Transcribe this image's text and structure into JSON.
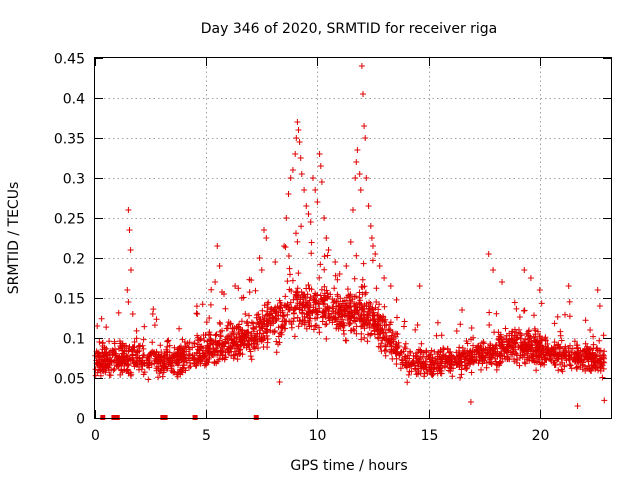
{
  "chart_data": {
    "type": "scatter",
    "title": "Day 346 of 2020, SRMTID for receiver riga",
    "xlabel": "GPS time / hours",
    "ylabel": "SRMTID / TECUs",
    "xlim": [
      0,
      23.2
    ],
    "ylim": [
      0,
      0.45
    ],
    "x_ticks": [
      0,
      5,
      10,
      15,
      20
    ],
    "x_tick_labels": [
      "0",
      "5",
      "10",
      "15",
      "20"
    ],
    "y_ticks": [
      0,
      0.05,
      0.1,
      0.15,
      0.2,
      0.25,
      0.3,
      0.35,
      0.4,
      0.45
    ],
    "y_tick_labels": [
      "0",
      "0.05",
      "0.1",
      "0.15",
      "0.2",
      "0.25",
      "0.3",
      "0.35",
      "0.4",
      "0.45"
    ],
    "grid": true,
    "marker": "+",
    "color": "#e00000",
    "zero_flags_hours": [
      0.35,
      0.85,
      1.0,
      3.05,
      3.15,
      4.5,
      7.25
    ],
    "series": [
      {
        "name": "SRMTID",
        "envelope": [
          {
            "x": 0.0,
            "median": 0.07,
            "spread": 0.03
          },
          {
            "x": 1.0,
            "median": 0.075,
            "spread": 0.035
          },
          {
            "x": 2.0,
            "median": 0.075,
            "spread": 0.035
          },
          {
            "x": 3.0,
            "median": 0.07,
            "spread": 0.035
          },
          {
            "x": 4.0,
            "median": 0.075,
            "spread": 0.035
          },
          {
            "x": 5.0,
            "median": 0.085,
            "spread": 0.035
          },
          {
            "x": 6.0,
            "median": 0.095,
            "spread": 0.04
          },
          {
            "x": 7.0,
            "median": 0.1,
            "spread": 0.04
          },
          {
            "x": 8.0,
            "median": 0.12,
            "spread": 0.05
          },
          {
            "x": 9.0,
            "median": 0.14,
            "spread": 0.06
          },
          {
            "x": 10.0,
            "median": 0.14,
            "spread": 0.055
          },
          {
            "x": 11.0,
            "median": 0.13,
            "spread": 0.05
          },
          {
            "x": 12.0,
            "median": 0.13,
            "spread": 0.05
          },
          {
            "x": 13.0,
            "median": 0.11,
            "spread": 0.045
          },
          {
            "x": 14.0,
            "median": 0.07,
            "spread": 0.03
          },
          {
            "x": 15.0,
            "median": 0.07,
            "spread": 0.03
          },
          {
            "x": 16.0,
            "median": 0.07,
            "spread": 0.03
          },
          {
            "x": 17.0,
            "median": 0.075,
            "spread": 0.03
          },
          {
            "x": 18.0,
            "median": 0.085,
            "spread": 0.035
          },
          {
            "x": 19.0,
            "median": 0.09,
            "spread": 0.04
          },
          {
            "x": 20.0,
            "median": 0.085,
            "spread": 0.035
          },
          {
            "x": 21.0,
            "median": 0.08,
            "spread": 0.035
          },
          {
            "x": 22.0,
            "median": 0.075,
            "spread": 0.03
          },
          {
            "x": 22.9,
            "median": 0.07,
            "spread": 0.03
          }
        ],
        "spikes": [
          {
            "x": 0.1,
            "y": 0.115
          },
          {
            "x": 0.2,
            "y": 0.095
          },
          {
            "x": 1.5,
            "y": 0.26
          },
          {
            "x": 1.55,
            "y": 0.235
          },
          {
            "x": 1.6,
            "y": 0.21
          },
          {
            "x": 1.62,
            "y": 0.185
          },
          {
            "x": 1.45,
            "y": 0.16
          },
          {
            "x": 1.5,
            "y": 0.145
          },
          {
            "x": 1.7,
            "y": 0.13
          },
          {
            "x": 2.6,
            "y": 0.13
          },
          {
            "x": 4.6,
            "y": 0.13
          },
          {
            "x": 5.5,
            "y": 0.215
          },
          {
            "x": 5.6,
            "y": 0.19
          },
          {
            "x": 5.4,
            "y": 0.17
          },
          {
            "x": 5.8,
            "y": 0.155
          },
          {
            "x": 6.3,
            "y": 0.165
          },
          {
            "x": 6.6,
            "y": 0.15
          },
          {
            "x": 7.4,
            "y": 0.2
          },
          {
            "x": 7.6,
            "y": 0.235
          },
          {
            "x": 7.7,
            "y": 0.225
          },
          {
            "x": 7.5,
            "y": 0.185
          },
          {
            "x": 8.1,
            "y": 0.195
          },
          {
            "x": 8.5,
            "y": 0.215
          },
          {
            "x": 8.6,
            "y": 0.25
          },
          {
            "x": 8.7,
            "y": 0.28
          },
          {
            "x": 8.8,
            "y": 0.3
          },
          {
            "x": 8.9,
            "y": 0.31
          },
          {
            "x": 9.0,
            "y": 0.33
          },
          {
            "x": 9.05,
            "y": 0.35
          },
          {
            "x": 9.1,
            "y": 0.37
          },
          {
            "x": 9.15,
            "y": 0.36
          },
          {
            "x": 9.2,
            "y": 0.345
          },
          {
            "x": 9.25,
            "y": 0.325
          },
          {
            "x": 9.3,
            "y": 0.305
          },
          {
            "x": 9.4,
            "y": 0.285
          },
          {
            "x": 9.5,
            "y": 0.265
          },
          {
            "x": 9.6,
            "y": 0.255
          },
          {
            "x": 9.7,
            "y": 0.245
          },
          {
            "x": 9.8,
            "y": 0.3
          },
          {
            "x": 9.9,
            "y": 0.285
          },
          {
            "x": 10.0,
            "y": 0.27
          },
          {
            "x": 10.1,
            "y": 0.33
          },
          {
            "x": 10.15,
            "y": 0.315
          },
          {
            "x": 10.2,
            "y": 0.295
          },
          {
            "x": 10.3,
            "y": 0.25
          },
          {
            "x": 10.4,
            "y": 0.225
          },
          {
            "x": 10.5,
            "y": 0.21
          },
          {
            "x": 10.8,
            "y": 0.195
          },
          {
            "x": 11.0,
            "y": 0.18
          },
          {
            "x": 11.3,
            "y": 0.19
          },
          {
            "x": 11.5,
            "y": 0.22
          },
          {
            "x": 11.6,
            "y": 0.26
          },
          {
            "x": 11.7,
            "y": 0.3
          },
          {
            "x": 11.75,
            "y": 0.32
          },
          {
            "x": 11.8,
            "y": 0.335
          },
          {
            "x": 11.9,
            "y": 0.305
          },
          {
            "x": 11.95,
            "y": 0.285
          },
          {
            "x": 12.0,
            "y": 0.44
          },
          {
            "x": 12.05,
            "y": 0.405
          },
          {
            "x": 12.1,
            "y": 0.365
          },
          {
            "x": 12.15,
            "y": 0.35
          },
          {
            "x": 12.2,
            "y": 0.3
          },
          {
            "x": 12.3,
            "y": 0.265
          },
          {
            "x": 12.4,
            "y": 0.24
          },
          {
            "x": 12.45,
            "y": 0.225
          },
          {
            "x": 12.5,
            "y": 0.215
          },
          {
            "x": 12.6,
            "y": 0.205
          },
          {
            "x": 12.8,
            "y": 0.19
          },
          {
            "x": 13.0,
            "y": 0.175
          },
          {
            "x": 13.3,
            "y": 0.165
          },
          {
            "x": 14.6,
            "y": 0.165
          },
          {
            "x": 16.5,
            "y": 0.135
          },
          {
            "x": 17.7,
            "y": 0.205
          },
          {
            "x": 17.9,
            "y": 0.185
          },
          {
            "x": 18.3,
            "y": 0.17
          },
          {
            "x": 19.3,
            "y": 0.185
          },
          {
            "x": 19.6,
            "y": 0.175
          },
          {
            "x": 20.0,
            "y": 0.16
          },
          {
            "x": 21.3,
            "y": 0.165
          },
          {
            "x": 22.6,
            "y": 0.16
          },
          {
            "x": 22.7,
            "y": 0.14
          },
          {
            "x": 21.7,
            "y": 0.015
          },
          {
            "x": 16.9,
            "y": 0.02
          },
          {
            "x": 22.9,
            "y": 0.022
          },
          {
            "x": 8.3,
            "y": 0.045
          }
        ]
      }
    ]
  }
}
